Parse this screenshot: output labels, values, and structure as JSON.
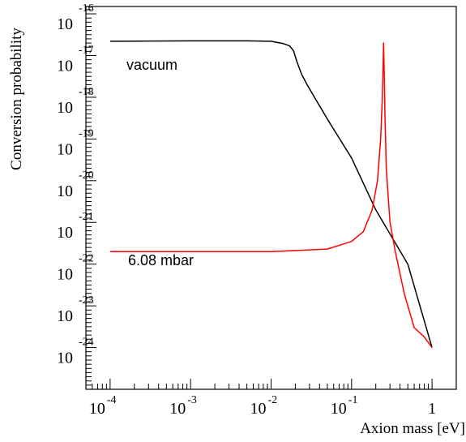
{
  "chart_data": {
    "type": "line",
    "title": "",
    "xlabel": "Axion mass [eV]",
    "ylabel": "Conversion probability",
    "xscale": "log",
    "yscale": "log",
    "xlim": [
      5e-05,
      2
    ],
    "ylim": [
      1e-25,
      1.5e-16
    ],
    "x_ticks": [
      {
        "base": "10",
        "exp": "-4"
      },
      {
        "base": "10",
        "exp": "-3"
      },
      {
        "base": "10",
        "exp": "-2"
      },
      {
        "base": "10",
        "exp": "-1"
      },
      {
        "base": "1",
        "exp": ""
      }
    ],
    "y_ticks": [
      {
        "base": "10",
        "exp": "-16"
      },
      {
        "base": "10",
        "exp": "-17"
      },
      {
        "base": "10",
        "exp": "-18"
      },
      {
        "base": "10",
        "exp": "-19"
      },
      {
        "base": "10",
        "exp": "-20"
      },
      {
        "base": "10",
        "exp": "-21"
      },
      {
        "base": "10",
        "exp": "-22"
      },
      {
        "base": "10",
        "exp": "-23"
      },
      {
        "base": "10",
        "exp": "-24"
      }
    ],
    "grid": false,
    "series": [
      {
        "name": "vacuum",
        "color": "#000000",
        "x": [
          0.0001,
          0.001,
          0.005,
          0.01,
          0.014,
          0.017,
          0.019,
          0.021,
          0.024,
          0.028,
          0.05,
          0.1,
          0.2,
          0.5,
          1.0
        ],
        "y": [
          2.2e-17,
          2.25e-17,
          2.25e-17,
          2.2e-17,
          1.95e-17,
          1.7e-17,
          1.3e-17,
          7e-18,
          3.5e-18,
          2e-18,
          3e-19,
          3.5e-20,
          2e-21,
          1e-22,
          1e-24
        ]
      },
      {
        "name": "6.08 mbar",
        "color": "#ff0000",
        "x": [
          0.0001,
          0.001,
          0.01,
          0.05,
          0.1,
          0.14,
          0.18,
          0.21,
          0.23,
          0.24,
          0.245,
          0.25,
          0.255,
          0.26,
          0.27,
          0.3,
          0.35,
          0.45,
          0.6,
          0.8,
          1.0
        ],
        "y": [
          2e-22,
          2e-22,
          2e-22,
          2.3e-22,
          3.5e-22,
          6e-22,
          2e-21,
          1e-20,
          1e-19,
          8e-19,
          3e-18,
          2e-17,
          3e-18,
          4e-19,
          2e-20,
          1e-21,
          2e-22,
          2e-23,
          3e-24,
          1.8e-24,
          1e-24
        ]
      }
    ]
  }
}
